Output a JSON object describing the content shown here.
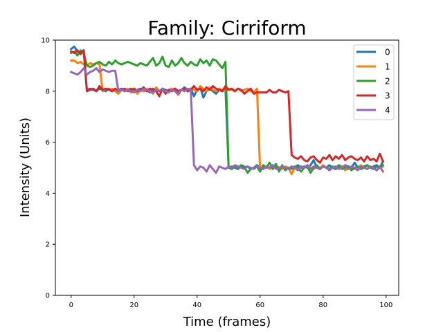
{
  "chart_data": {
    "type": "line",
    "title": "Family: Cirriform",
    "xlabel": "Time (frames)",
    "ylabel": "Intensity (Units)",
    "xlim": [
      -5,
      104
    ],
    "ylim": [
      0,
      10
    ],
    "xticks": [
      "0",
      "20",
      "40",
      "60",
      "80",
      "100"
    ],
    "yticks": [
      "0",
      "2",
      "4",
      "6",
      "8",
      "10"
    ],
    "grid": false,
    "legend_position": "top-right",
    "colors": [
      "#1f77b4",
      "#ff7f0e",
      "#2ca02c",
      "#d62728",
      "#9467bd"
    ],
    "series": [
      {
        "name": "0",
        "y": [
          9.65,
          9.75,
          9.55,
          9.5,
          9.6,
          8.05,
          8.1,
          8.05,
          8.0,
          8.1,
          8.05,
          8.0,
          8.1,
          8.05,
          8.0,
          8.05,
          8.1,
          8.0,
          8.05,
          8.1,
          8.0,
          8.05,
          8.1,
          8.0,
          8.05,
          7.95,
          8.1,
          8.05,
          8.0,
          8.1,
          8.05,
          8.0,
          8.05,
          8.1,
          8.0,
          8.05,
          8.15,
          8.05,
          8.1,
          7.8,
          8.05,
          8.15,
          7.75,
          8.0,
          8.1,
          8.0,
          7.9,
          8.05,
          8.0,
          8.1,
          5.0,
          5.05,
          5.0,
          4.95,
          5.1,
          5.0,
          5.05,
          4.95,
          5.0,
          5.1,
          5.0,
          4.95,
          5.05,
          5.0,
          5.1,
          5.0,
          4.95,
          5.05,
          5.0,
          4.95,
          5.05,
          5.0,
          5.1,
          5.0,
          5.05,
          5.0,
          5.1,
          5.3,
          5.0,
          4.95,
          5.05,
          5.0,
          5.1,
          5.0,
          4.95,
          5.05,
          5.0,
          5.1,
          5.05,
          5.0,
          5.2,
          5.0,
          4.95,
          5.05,
          5.1,
          5.0,
          5.05,
          5.1,
          5.0,
          5.25
        ]
      },
      {
        "name": "1",
        "y": [
          9.2,
          9.2,
          9.1,
          9.15,
          9.05,
          9.0,
          9.1,
          9.05,
          9.1,
          9.05,
          8.0,
          8.1,
          8.05,
          8.1,
          8.0,
          7.9,
          8.05,
          8.0,
          8.1,
          7.95,
          8.1,
          7.9,
          8.05,
          8.0,
          8.1,
          8.0,
          7.9,
          8.15,
          8.0,
          8.1,
          7.95,
          8.05,
          8.1,
          8.0,
          7.85,
          8.05,
          8.1,
          8.0,
          8.1,
          8.05,
          8.0,
          8.2,
          8.1,
          8.0,
          8.15,
          8.05,
          8.0,
          8.1,
          8.05,
          8.0,
          8.1,
          8.05,
          8.0,
          8.1,
          8.0,
          8.05,
          8.1,
          8.0,
          7.95,
          8.1,
          4.9,
          5.0,
          5.05,
          4.95,
          5.0,
          5.1,
          5.0,
          4.95,
          5.05,
          5.0,
          4.75,
          5.0,
          4.95,
          5.05,
          5.0,
          5.1,
          5.0,
          4.95,
          5.05,
          5.0,
          5.1,
          5.0,
          4.95,
          5.05,
          5.0,
          5.1,
          5.05,
          4.9,
          5.0,
          5.05,
          4.95,
          5.0,
          5.1,
          5.0,
          4.95,
          5.05,
          5.0,
          4.9,
          5.0,
          5.05
        ]
      },
      {
        "name": "2",
        "y": [
          9.5,
          9.55,
          9.4,
          9.6,
          9.5,
          9.0,
          8.95,
          9.0,
          9.1,
          9.15,
          9.05,
          9.0,
          9.15,
          9.05,
          9.2,
          9.1,
          9.05,
          9.1,
          9.15,
          9.1,
          9.05,
          9.0,
          9.1,
          9.05,
          9.0,
          9.15,
          9.3,
          9.0,
          9.1,
          9.35,
          9.0,
          8.95,
          9.2,
          9.0,
          9.1,
          9.3,
          9.1,
          9.0,
          9.15,
          9.05,
          9.0,
          9.25,
          9.1,
          9.2,
          9.0,
          9.25,
          9.2,
          9.05,
          8.9,
          9.15,
          5.0,
          4.95,
          5.05,
          5.0,
          5.1,
          5.05,
          4.8,
          4.95,
          5.0,
          5.05,
          4.85,
          5.1,
          5.0,
          5.2,
          4.95,
          5.15,
          4.85,
          5.1,
          4.9,
          5.0,
          4.95,
          5.05,
          5.0,
          4.85,
          5.0,
          5.05,
          4.8,
          5.0,
          5.1,
          4.95,
          5.05,
          5.0,
          4.95,
          5.05,
          5.0,
          5.1,
          4.95,
          5.0,
          5.05,
          4.9,
          5.0,
          5.05,
          4.95,
          5.0,
          5.1,
          5.0,
          4.95,
          5.05,
          5.0,
          5.1
        ]
      },
      {
        "name": "3",
        "y": [
          9.55,
          9.5,
          9.6,
          9.45,
          9.6,
          8.0,
          8.05,
          8.1,
          8.0,
          8.2,
          8.05,
          8.1,
          8.05,
          8.0,
          8.1,
          8.0,
          8.05,
          8.1,
          8.0,
          8.05,
          8.1,
          8.0,
          8.05,
          8.15,
          8.0,
          8.1,
          8.05,
          8.0,
          7.8,
          8.1,
          7.9,
          8.05,
          8.0,
          8.1,
          8.0,
          8.05,
          8.1,
          8.0,
          8.05,
          8.2,
          8.05,
          8.1,
          8.0,
          8.15,
          8.05,
          8.2,
          8.1,
          8.05,
          8.0,
          8.2,
          8.05,
          8.1,
          8.0,
          8.1,
          8.05,
          7.9,
          8.0,
          8.1,
          7.9,
          7.95,
          7.95,
          7.95,
          7.95,
          8.05,
          7.95,
          7.95,
          8.05,
          8.0,
          7.95,
          8.0,
          5.5,
          5.4,
          5.35,
          5.45,
          5.3,
          5.25,
          5.4,
          5.45,
          5.3,
          5.2,
          5.4,
          5.35,
          5.5,
          5.3,
          5.45,
          5.35,
          5.5,
          5.3,
          5.4,
          5.45,
          5.35,
          5.3,
          5.4,
          5.25,
          5.45,
          5.3,
          5.35,
          5.25,
          5.55,
          5.25
        ]
      },
      {
        "name": "4",
        "y": [
          8.75,
          8.7,
          8.65,
          8.75,
          8.9,
          8.65,
          8.75,
          8.8,
          8.9,
          8.75,
          8.85,
          8.8,
          8.75,
          8.8,
          8.8,
          8.0,
          8.05,
          8.0,
          8.05,
          8.0,
          7.95,
          8.05,
          8.0,
          8.1,
          8.05,
          8.0,
          7.95,
          8.05,
          8.0,
          8.1,
          8.0,
          7.95,
          8.05,
          8.0,
          7.9,
          8.05,
          8.0,
          8.1,
          8.05,
          5.1,
          4.9,
          5.05,
          5.0,
          4.85,
          5.1,
          4.95,
          4.8,
          5.05,
          5.0,
          4.95,
          5.05,
          5.0,
          5.1,
          5.05,
          5.0,
          4.95,
          5.05,
          5.0,
          4.95,
          5.05,
          5.0,
          4.95,
          5.05,
          5.0,
          5.1,
          4.95,
          5.0,
          5.05,
          5.0,
          4.95,
          5.05,
          5.0,
          4.9,
          5.05,
          5.0,
          5.1,
          4.95,
          5.05,
          5.0,
          4.95,
          5.05,
          5.0,
          4.9,
          5.0,
          5.05,
          4.95,
          5.0,
          5.1,
          4.95,
          5.05,
          5.0,
          4.9,
          5.05,
          5.0,
          4.95,
          5.05,
          5.0,
          4.9,
          5.05,
          4.85
        ]
      }
    ]
  }
}
